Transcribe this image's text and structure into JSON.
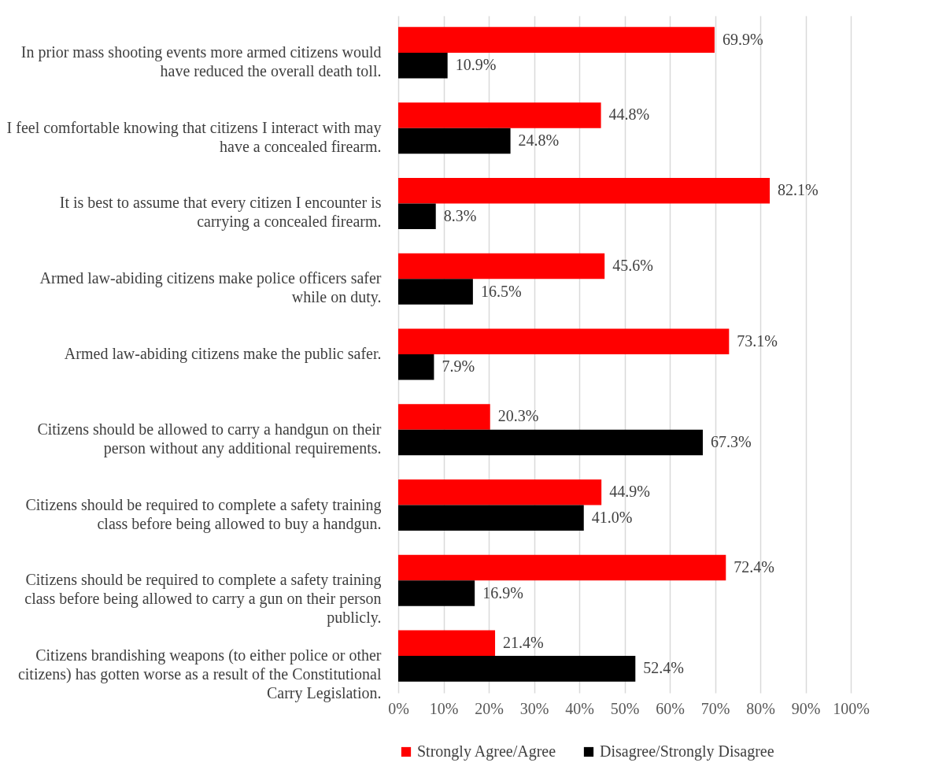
{
  "chart_data": {
    "type": "bar",
    "orientation": "horizontal",
    "categories": [
      "In prior mass shooting events more armed citizens would have reduced the overall death toll.",
      "I feel comfortable knowing that citizens I interact with may have a concealed firearm.",
      "It is best to assume that every citizen I encounter is carrying a concealed firearm.",
      "Armed law-abiding citizens make police officers safer while on duty.",
      "Armed law-abiding citizens make the public safer.",
      "Citizens should be allowed to carry a handgun on their person without any additional requirements.",
      "Citizens should be required to complete a safety training class before being allowed to buy a handgun.",
      "Citizens should be required to complete a safety training class before being allowed to carry a gun on their person publicly.",
      "Citizens brandishing weapons (to either police or other citizens) has gotten worse as a result of the Constitutional Carry Legislation."
    ],
    "series": [
      {
        "name": "Strongly Agree/Agree",
        "color": "#ff0000",
        "values": [
          69.9,
          44.8,
          82.1,
          45.6,
          73.1,
          20.3,
          44.9,
          72.4,
          21.4
        ],
        "value_labels": [
          "69.9%",
          "44.8%",
          "82.1%",
          "45.6%",
          "73.1%",
          "20.3%",
          "44.9%",
          "72.4%",
          "21.4%"
        ]
      },
      {
        "name": "Disagree/Strongly Disagree",
        "color": "#000000",
        "values": [
          10.9,
          24.8,
          8.3,
          16.5,
          7.9,
          67.3,
          41.0,
          16.9,
          52.4
        ],
        "value_labels": [
          "10.9%",
          "24.8%",
          "8.3%",
          "16.5%",
          "7.9%",
          "67.3%",
          "41.0%",
          "16.9%",
          "52.4%"
        ]
      }
    ],
    "xlim": [
      0,
      100
    ],
    "xticks": [
      {
        "value": 0,
        "label": "0%"
      },
      {
        "value": 10,
        "label": "10%"
      },
      {
        "value": 20,
        "label": "20%"
      },
      {
        "value": 30,
        "label": "30%"
      },
      {
        "value": 40,
        "label": "40%"
      },
      {
        "value": 50,
        "label": "50%"
      },
      {
        "value": 60,
        "label": "60%"
      },
      {
        "value": 70,
        "label": "70%"
      },
      {
        "value": 80,
        "label": "80%"
      },
      {
        "value": 90,
        "label": "90%"
      },
      {
        "value": 100,
        "label": "100%"
      }
    ],
    "grid": "x",
    "legend": "bottom"
  }
}
